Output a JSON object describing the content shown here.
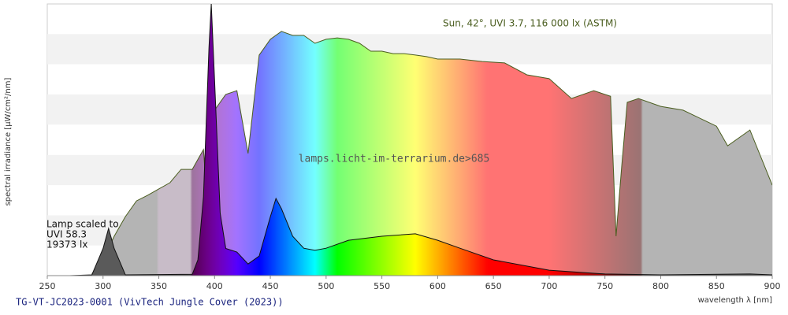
{
  "chart_data": {
    "type": "area",
    "y_label": "spectral irradiance [µW/cm²/nm]",
    "x_label": "wavelength λ [nm]",
    "footer": "TG-VT-JC2023-0001 (VivTech Jungle Cover (2023))",
    "watermark": "lamps.licht-im-terrarium.de>685",
    "sun_label": "Sun, 42°, UVI 3.7, 116 000 lx (ASTM)",
    "lamp_label": [
      "Lamp scaled to",
      "UVI 58.3",
      "19373 lx"
    ],
    "xlim": [
      250,
      900
    ],
    "xticks": [
      250,
      300,
      350,
      400,
      450,
      500,
      550,
      600,
      650,
      700,
      750,
      800,
      850,
      900
    ],
    "ylim": [
      0,
      100
    ],
    "yticks": [
      0,
      11.1,
      22.2,
      33.3,
      44.4,
      55.6,
      66.7,
      77.8,
      88.9,
      100
    ],
    "series": [
      {
        "color": "#4b5e20",
        "x": [
          290,
          300,
          310,
          320,
          330,
          340,
          350,
          360,
          370,
          380,
          390,
          393,
          400,
          410,
          420,
          430,
          440,
          450,
          460,
          470,
          480,
          490,
          500,
          510,
          520,
          530,
          540,
          550,
          560,
          570,
          580,
          590,
          600,
          620,
          640,
          660,
          680,
          700,
          720,
          740,
          755,
          760,
          765,
          770,
          780,
          800,
          820,
          850,
          860,
          880,
          900
        ],
        "values": [
          0.6,
          5.8,
          14.5,
          21.7,
          27.5,
          29.6,
          31.9,
          34.2,
          39.1,
          39.1,
          46.4,
          29,
          60.9,
          66.7,
          68.1,
          45,
          81.2,
          87,
          89.9,
          88.4,
          88.4,
          85.5,
          87,
          87.5,
          87,
          85.5,
          82.6,
          82.6,
          81.7,
          81.7,
          81.2,
          80.6,
          79.7,
          79.7,
          78.8,
          78.3,
          73.9,
          72.5,
          65.2,
          68.1,
          66,
          14.5,
          40,
          63.8,
          65.2,
          62.3,
          60.9,
          55,
          47.8,
          53.6,
          33.3
        ]
      },
      {
        "color": "#111111",
        "x": [
          270,
          290,
          300,
          305,
          310,
          320,
          380,
          385,
          390,
          395,
          397,
          400,
          405,
          410,
          420,
          430,
          440,
          450,
          455,
          460,
          470,
          480,
          490,
          500,
          520,
          550,
          580,
          600,
          620,
          650,
          700,
          750,
          800,
          880,
          900
        ],
        "values": [
          0,
          0.3,
          10,
          17.4,
          10,
          0.3,
          0.5,
          5.8,
          29,
          84,
          100,
          72,
          23,
          10,
          8.7,
          4.3,
          7.2,
          21.7,
          28.4,
          24.6,
          14.5,
          10.1,
          9.3,
          10.1,
          13,
          14.5,
          15.4,
          13,
          10.1,
          5.8,
          2,
          0.6,
          0.3,
          0.6,
          0.3
        ]
      }
    ]
  }
}
